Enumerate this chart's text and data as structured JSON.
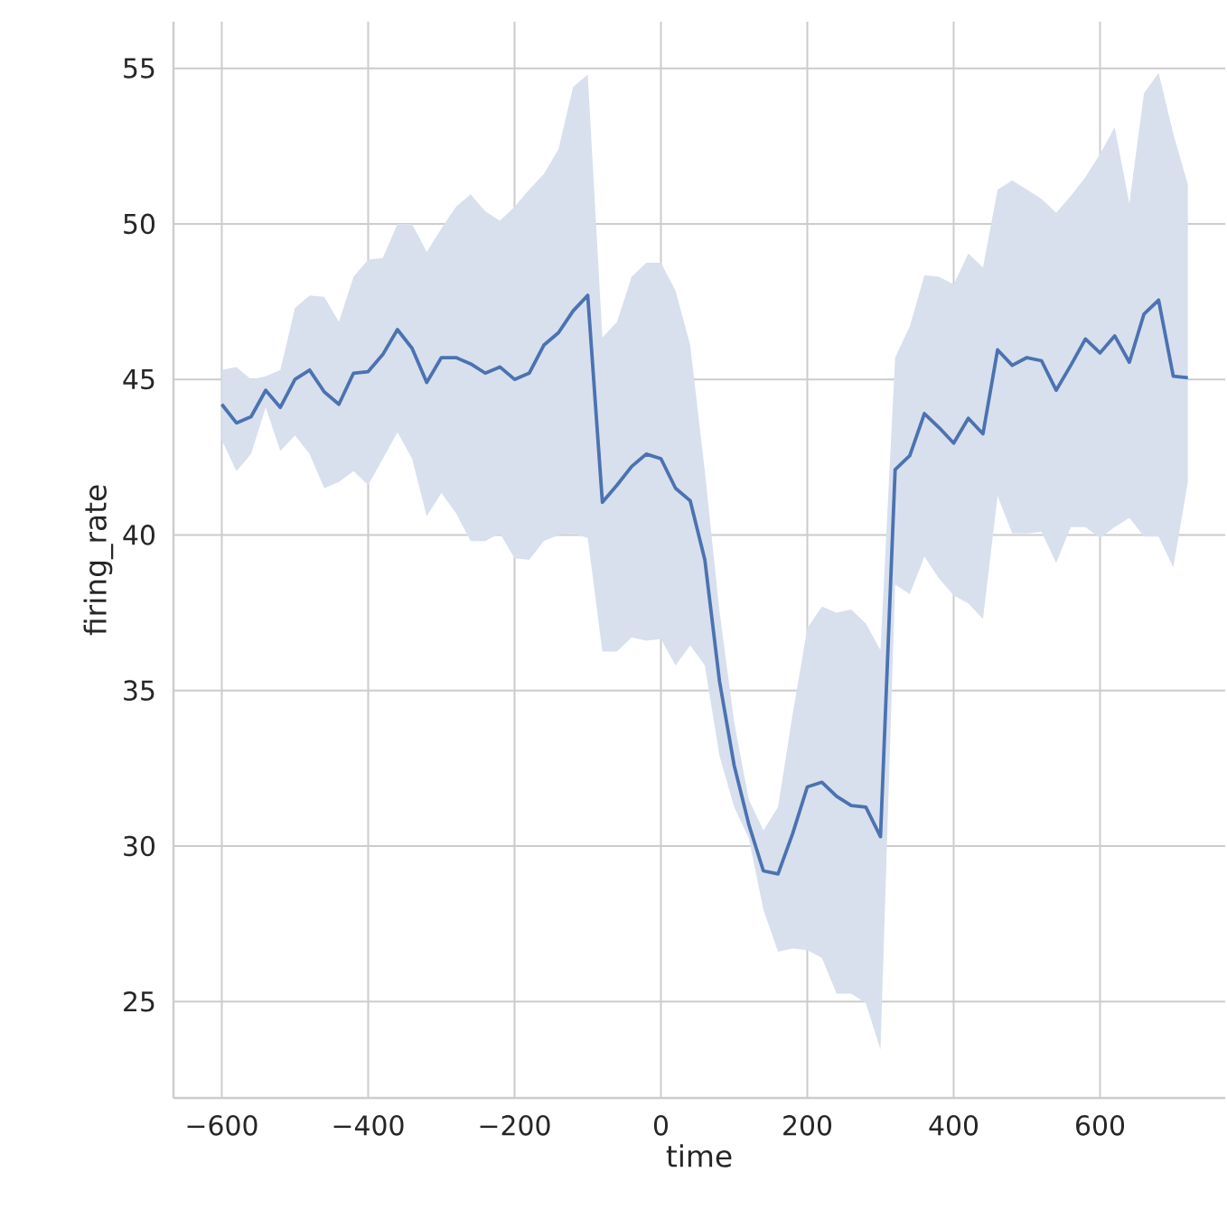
{
  "chart_data": {
    "type": "line",
    "xlabel": "time",
    "ylabel": "firing_rate",
    "x": [
      -600,
      -580,
      -560,
      -540,
      -520,
      -500,
      -480,
      -460,
      -440,
      -420,
      -400,
      -380,
      -360,
      -340,
      -320,
      -300,
      -280,
      -260,
      -240,
      -220,
      -200,
      -180,
      -160,
      -140,
      -120,
      -100,
      -80,
      -60,
      -40,
      -20,
      0,
      20,
      40,
      60,
      80,
      100,
      120,
      140,
      160,
      180,
      200,
      220,
      240,
      260,
      280,
      300,
      320,
      340,
      360,
      380,
      400,
      420,
      440,
      460,
      480,
      500,
      520,
      540,
      560,
      580,
      600,
      620,
      640,
      660,
      680,
      700,
      720
    ],
    "series": [
      {
        "color": "#4c72b0",
        "values": [
          44.2,
          43.6,
          43.8,
          44.65,
          44.1,
          45.0,
          45.3,
          44.6,
          44.2,
          45.2,
          45.25,
          45.8,
          46.6,
          46.0,
          44.9,
          45.7,
          45.7,
          45.5,
          45.2,
          45.4,
          45.0,
          45.2,
          46.1,
          46.5,
          47.2,
          47.7,
          41.05,
          41.6,
          42.2,
          42.6,
          42.45,
          41.5,
          41.1,
          39.2,
          35.3,
          32.6,
          30.7,
          29.2,
          29.1,
          30.4,
          31.9,
          32.05,
          31.6,
          31.3,
          31.25,
          30.3,
          42.1,
          42.55,
          43.9,
          43.45,
          42.95,
          43.75,
          43.25,
          45.95,
          45.45,
          45.7,
          45.6,
          44.65,
          45.45,
          46.3,
          45.85,
          46.4,
          45.55,
          47.1,
          47.55,
          45.1,
          45.05
        ],
        "upper": [
          45.3,
          45.4,
          45.0,
          45.1,
          45.3,
          47.3,
          47.7,
          47.65,
          46.85,
          48.3,
          48.85,
          48.9,
          50.0,
          50.0,
          49.1,
          49.85,
          50.55,
          50.95,
          50.4,
          50.1,
          50.55,
          51.1,
          51.6,
          52.4,
          54.4,
          54.8,
          46.35,
          46.85,
          48.3,
          48.75,
          48.75,
          47.85,
          46.1,
          42.05,
          37.55,
          34.0,
          31.5,
          30.5,
          31.25,
          34.25,
          37.0,
          37.7,
          37.5,
          37.6,
          37.15,
          36.3,
          45.7,
          46.7,
          48.35,
          48.3,
          48.05,
          49.05,
          48.6,
          51.1,
          51.4,
          51.1,
          50.8,
          50.35,
          50.9,
          51.5,
          52.25,
          53.1,
          50.65,
          54.2,
          54.85,
          52.9,
          51.25
        ],
        "lower": [
          43.05,
          42.05,
          42.6,
          44.1,
          42.7,
          43.2,
          42.6,
          41.5,
          41.7,
          42.05,
          41.6,
          42.45,
          43.3,
          42.45,
          40.6,
          41.35,
          40.7,
          39.8,
          39.8,
          40.05,
          39.25,
          39.2,
          39.8,
          40.0,
          40.05,
          39.9,
          36.25,
          36.25,
          36.7,
          36.6,
          36.65,
          35.8,
          36.45,
          35.8,
          32.9,
          31.25,
          30.25,
          27.95,
          26.6,
          26.7,
          26.65,
          26.4,
          25.25,
          25.25,
          24.95,
          23.45,
          38.4,
          38.1,
          39.3,
          38.6,
          38.05,
          37.8,
          37.3,
          41.25,
          40.05,
          40.05,
          40.1,
          39.1,
          40.25,
          40.25,
          39.9,
          40.25,
          40.55,
          39.95,
          39.95,
          38.95,
          41.7
        ]
      }
    ],
    "xlim": [
      -666,
      771
    ],
    "ylim": [
      21.9,
      56.5
    ],
    "xticks": [
      {
        "value": -600,
        "label": "−600"
      },
      {
        "value": -400,
        "label": "−400"
      },
      {
        "value": -200,
        "label": "−200"
      },
      0,
      200,
      400,
      600
    ],
    "yticks": [
      25,
      30,
      35,
      40,
      45,
      50,
      55
    ],
    "grid": true,
    "line_style": "solid",
    "marker": "none"
  }
}
